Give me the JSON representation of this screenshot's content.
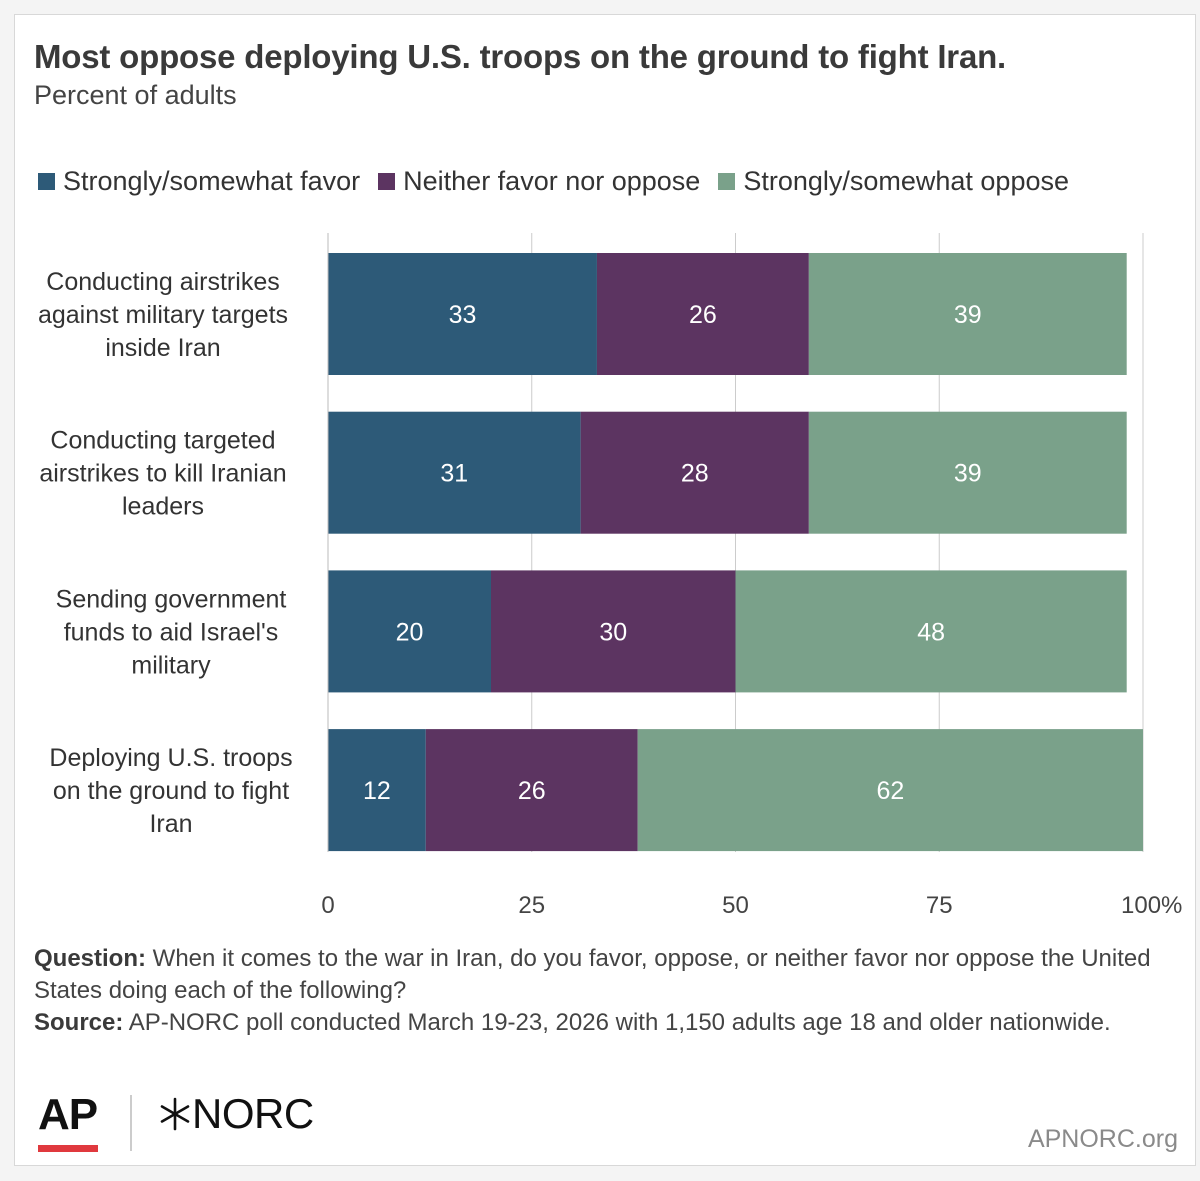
{
  "title": "Most oppose deploying U.S. troops on the ground to fight Iran.",
  "subtitle": "Percent of adults",
  "colors": {
    "favor": "#2d5a78",
    "neither": "#5c3461",
    "oppose": "#7aa18a",
    "grid": "#cccccc"
  },
  "chart_data": {
    "type": "bar",
    "orientation": "horizontal",
    "stacked": true,
    "categories": [
      [
        "Conducting airstrikes",
        "against military targets",
        "inside Iran"
      ],
      [
        "Conducting targeted",
        "airstrikes to kill Iranian",
        "leaders"
      ],
      [
        "Sending government",
        "funds to aid Israel's",
        "military"
      ],
      [
        "Deploying U.S. troops",
        "on the ground to fight",
        "Iran"
      ]
    ],
    "series": [
      {
        "name": "Strongly/somewhat favor",
        "values": [
          33,
          31,
          20,
          12
        ]
      },
      {
        "name": "Neither favor nor oppose",
        "values": [
          26,
          28,
          30,
          26
        ]
      },
      {
        "name": "Strongly/somewhat oppose",
        "values": [
          39,
          39,
          48,
          62
        ]
      }
    ],
    "xlim": [
      0,
      100
    ],
    "xticks": [
      "0",
      "25",
      "50",
      "75",
      "100%"
    ],
    "legend_position": "top"
  },
  "notes": {
    "question_label": "Question:",
    "question_text": " When it comes to the war in Iran, do you favor, oppose, or neither favor nor oppose the United States doing each of the following?",
    "source_label": "Source:",
    "source_text": " AP-NORC poll conducted March 19-23, 2026 with 1,150 adults age 18 and older nationwide."
  },
  "footer": {
    "ap_logo": "AP",
    "norc_logo": "NORC",
    "site": "APNORC.org"
  }
}
